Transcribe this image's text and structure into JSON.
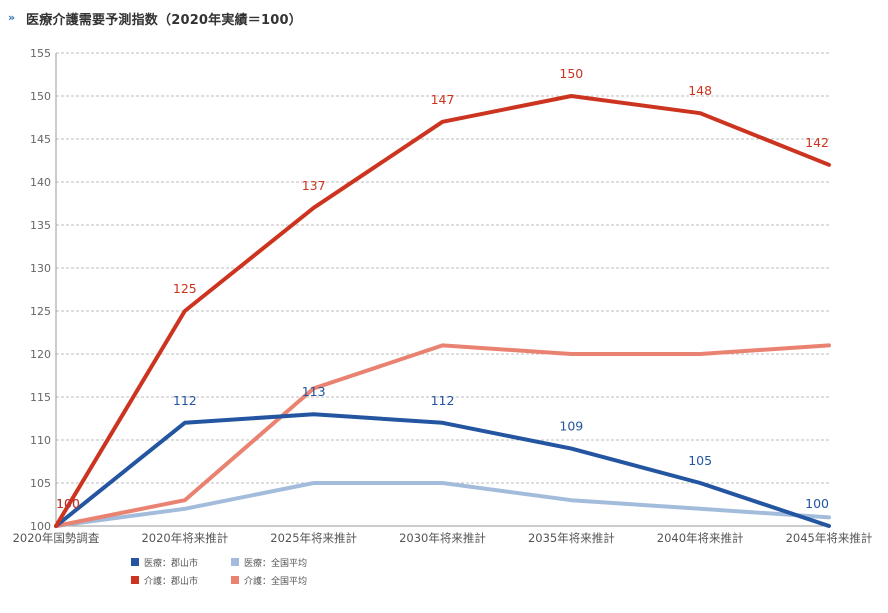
{
  "header": {
    "icon_name": "double-chevron-right-icon",
    "icon_glyph": "»",
    "title": "医療介護需要予測指数（2020年実績＝100）"
  },
  "chart_data": {
    "type": "line",
    "title": "医療介護需要予測指数（2020年実績＝100）",
    "categories": [
      "2020年国勢調査",
      "2020年将来推計",
      "2025年将来推計",
      "2030年将来推計",
      "2035年将来推計",
      "2040年将来推計",
      "2045年将来推計"
    ],
    "ylim": [
      100,
      155
    ],
    "yticks": [
      100,
      105,
      110,
      115,
      120,
      125,
      130,
      135,
      140,
      145,
      150,
      155
    ],
    "grid": true,
    "legend_position": "bottom-left",
    "series": [
      {
        "name": "医療：郡山市",
        "color": "#2355a0",
        "values": [
          100,
          112,
          113,
          112,
          109,
          105,
          100
        ],
        "labeled": true
      },
      {
        "name": "医療：全国平均",
        "color": "#a3bcdb",
        "values": [
          100,
          102,
          105,
          105,
          103,
          102,
          101
        ],
        "labeled": false
      },
      {
        "name": "介護：郡山市",
        "color": "#cc3420",
        "values": [
          100,
          125,
          137,
          147,
          150,
          148,
          142
        ],
        "labeled": true
      },
      {
        "name": "介護：全国平均",
        "color": "#ea8272",
        "values": [
          100,
          103,
          116,
          121,
          120,
          120,
          121
        ],
        "labeled": false
      }
    ]
  }
}
